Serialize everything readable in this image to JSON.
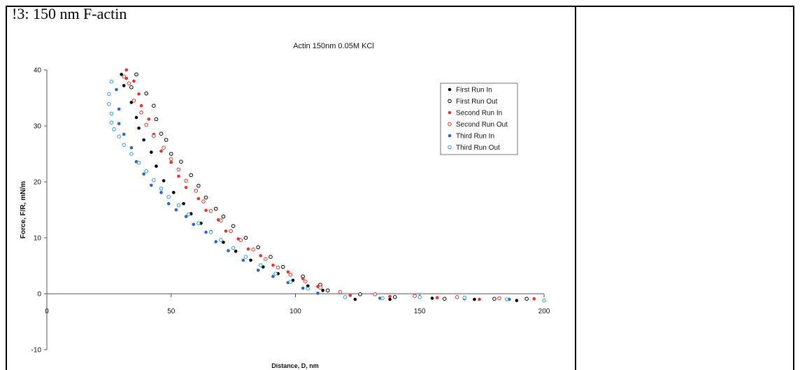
{
  "document": {
    "heading": "!3:  150 nm F-actin"
  },
  "chart_data": {
    "type": "scatter",
    "title": "Actin 150nm 0.05M KCl",
    "xlabel": "Distance, D, nm",
    "ylabel": "Force, F/R, mN/m",
    "xlim": [
      0,
      200
    ],
    "ylim": [
      -10,
      40
    ],
    "xticks": [
      0,
      50,
      100,
      150,
      200
    ],
    "yticks": [
      -10,
      0,
      10,
      20,
      30,
      40
    ],
    "grid": false,
    "legend_position": "top-right",
    "series": [
      {
        "name": "First Run In",
        "color": "#000000",
        "marker": "filled",
        "points": [
          [
            30,
            39.2
          ],
          [
            31,
            37.2
          ],
          [
            34,
            34.2
          ],
          [
            36,
            31.5
          ],
          [
            37,
            29.6
          ],
          [
            39,
            27.5
          ],
          [
            42,
            25.3
          ],
          [
            44,
            22.8
          ],
          [
            47,
            20.2
          ],
          [
            51,
            18.1
          ],
          [
            55,
            16.1
          ],
          [
            58,
            14.3
          ],
          [
            62,
            12.6
          ],
          [
            66,
            11.1
          ],
          [
            71,
            9.2
          ],
          [
            76,
            7.6
          ],
          [
            82,
            6.0
          ],
          [
            87,
            4.8
          ],
          [
            93,
            3.6
          ],
          [
            99,
            2.4
          ],
          [
            105,
            1.4
          ],
          [
            111,
            0.6
          ],
          [
            124,
            -1.0
          ],
          [
            138,
            -1.0
          ],
          [
            155,
            -0.8
          ],
          [
            172,
            -1.0
          ],
          [
            189,
            -1.2
          ]
        ]
      },
      {
        "name": "First Run Out",
        "color": "#000000",
        "marker": "open",
        "points": [
          [
            36,
            39.2
          ],
          [
            34,
            36.9
          ],
          [
            40,
            35.8
          ],
          [
            43,
            33.6
          ],
          [
            44,
            31.2
          ],
          [
            46,
            28.6
          ],
          [
            48,
            27.5
          ],
          [
            50,
            25.0
          ],
          [
            54,
            23.6
          ],
          [
            58,
            21.2
          ],
          [
            61,
            19.3
          ],
          [
            64,
            17.2
          ],
          [
            68,
            15.2
          ],
          [
            71,
            13.8
          ],
          [
            75,
            12.1
          ],
          [
            80,
            10.0
          ],
          [
            85,
            8.3
          ],
          [
            90,
            6.6
          ],
          [
            95,
            4.8
          ],
          [
            103,
            3.1
          ],
          [
            110,
            1.6
          ],
          [
            113,
            0.6
          ],
          [
            126,
            -0.1
          ],
          [
            140,
            -0.6
          ],
          [
            160,
            -0.9
          ],
          [
            180,
            -0.9
          ],
          [
            193,
            -0.9
          ]
        ]
      },
      {
        "name": "Second Run In",
        "color": "#e8322a",
        "marker": "filled",
        "points": [
          [
            32,
            40.0
          ],
          [
            32,
            38.5
          ],
          [
            35,
            38.0
          ],
          [
            37,
            35.7
          ],
          [
            38,
            33.6
          ],
          [
            41,
            31.2
          ],
          [
            43,
            28.5
          ],
          [
            46,
            25.5
          ],
          [
            50,
            23.5
          ],
          [
            53,
            21.0
          ],
          [
            56,
            19.0
          ],
          [
            61,
            17.0
          ],
          [
            64,
            14.9
          ],
          [
            69,
            13.2
          ],
          [
            72,
            11.2
          ],
          [
            77,
            9.8
          ],
          [
            81,
            8.0
          ],
          [
            86,
            6.8
          ],
          [
            91,
            5.1
          ],
          [
            97,
            3.9
          ],
          [
            103,
            2.7
          ],
          [
            109,
            1.3
          ],
          [
            122,
            -0.3
          ],
          [
            138,
            -0.5
          ],
          [
            157,
            -0.7
          ],
          [
            174,
            -1.0
          ],
          [
            196,
            -0.9
          ]
        ]
      },
      {
        "name": "Second Run Out",
        "color": "#e8322a",
        "marker": "open",
        "points": [
          [
            31,
            38.8
          ],
          [
            33,
            37.6
          ],
          [
            35,
            34.5
          ],
          [
            38,
            32.4
          ],
          [
            40,
            30.2
          ],
          [
            43,
            28.2
          ],
          [
            47,
            26.1
          ],
          [
            50,
            24.1
          ],
          [
            53,
            22.2
          ],
          [
            56,
            20.2
          ],
          [
            60,
            18.4
          ],
          [
            63,
            16.5
          ],
          [
            66,
            14.8
          ],
          [
            70,
            13.1
          ],
          [
            74,
            11.2
          ],
          [
            78,
            9.6
          ],
          [
            83,
            7.9
          ],
          [
            88,
            6.2
          ],
          [
            93,
            4.7
          ],
          [
            98,
            3.4
          ],
          [
            104,
            2.2
          ],
          [
            110,
            1.1
          ],
          [
            118,
            0.3
          ],
          [
            132,
            -0.1
          ],
          [
            148,
            -0.4
          ],
          [
            165,
            -0.6
          ],
          [
            182,
            -0.8
          ]
        ]
      },
      {
        "name": "Third Run In",
        "color": "#2e64c8",
        "marker": "filled",
        "points": [
          [
            28,
            36.5
          ],
          [
            29,
            33.0
          ],
          [
            29,
            30.4
          ],
          [
            31,
            28.5
          ],
          [
            34,
            26.1
          ],
          [
            36,
            23.6
          ],
          [
            39,
            21.4
          ],
          [
            42,
            19.4
          ],
          [
            46,
            18.1
          ],
          [
            49,
            16.1
          ],
          [
            52,
            15.0
          ],
          [
            56,
            13.8
          ],
          [
            59,
            12.4
          ],
          [
            64,
            11.0
          ],
          [
            68,
            9.3
          ],
          [
            73,
            7.7
          ],
          [
            79,
            6.0
          ],
          [
            85,
            4.2
          ],
          [
            91,
            3.1
          ],
          [
            97,
            2.0
          ],
          [
            103,
            1.0
          ],
          [
            109,
            0.1
          ],
          [
            120,
            -0.6
          ],
          [
            134,
            -0.8
          ],
          [
            150,
            -0.5
          ],
          [
            168,
            -0.9
          ],
          [
            186,
            -1.0
          ]
        ]
      },
      {
        "name": "Third Run Out",
        "color": "#2e9ee0",
        "marker": "open",
        "points": [
          [
            26,
            37.9
          ],
          [
            25,
            35.7
          ],
          [
            25,
            33.9
          ],
          [
            26,
            32.2
          ],
          [
            26,
            30.6
          ],
          [
            27,
            29.4
          ],
          [
            29,
            28.1
          ],
          [
            31,
            26.6
          ],
          [
            34,
            25.0
          ],
          [
            37,
            23.4
          ],
          [
            40,
            21.9
          ],
          [
            43,
            20.3
          ],
          [
            46,
            18.8
          ],
          [
            49,
            17.3
          ],
          [
            53,
            15.8
          ],
          [
            57,
            14.2
          ],
          [
            61,
            12.6
          ],
          [
            66,
            11.0
          ],
          [
            70,
            9.6
          ],
          [
            75,
            8.2
          ],
          [
            80,
            6.6
          ],
          [
            86,
            5.1
          ],
          [
            92,
            3.6
          ],
          [
            98,
            2.1
          ],
          [
            105,
            0.9
          ],
          [
            120,
            -0.6
          ],
          [
            135,
            -0.8
          ],
          [
            150,
            -0.6
          ],
          [
            168,
            -0.7
          ],
          [
            185,
            -1.0
          ],
          [
            200,
            -1.2
          ]
        ]
      }
    ]
  }
}
